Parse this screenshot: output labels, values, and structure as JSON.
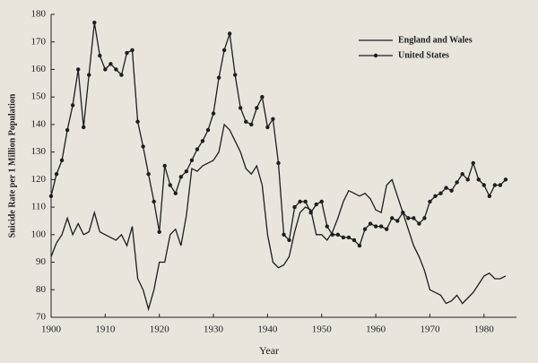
{
  "chart_data": {
    "type": "line",
    "x_label": "Year",
    "y_label": "Suicide Rate per 1 Million Population",
    "x": [
      1900,
      1901,
      1902,
      1903,
      1904,
      1905,
      1906,
      1907,
      1908,
      1909,
      1910,
      1911,
      1912,
      1913,
      1914,
      1915,
      1916,
      1917,
      1918,
      1919,
      1920,
      1921,
      1922,
      1923,
      1924,
      1925,
      1926,
      1927,
      1928,
      1929,
      1930,
      1931,
      1932,
      1933,
      1934,
      1935,
      1936,
      1937,
      1938,
      1939,
      1940,
      1941,
      1942,
      1943,
      1944,
      1945,
      1946,
      1947,
      1948,
      1949,
      1950,
      1951,
      1952,
      1953,
      1954,
      1955,
      1956,
      1957,
      1958,
      1959,
      1960,
      1961,
      1962,
      1963,
      1964,
      1965,
      1966,
      1967,
      1968,
      1969,
      1970,
      1971,
      1972,
      1973,
      1974,
      1975,
      1976,
      1977,
      1978,
      1979,
      1980,
      1981,
      1982,
      1983,
      1984
    ],
    "series": [
      {
        "name": "England and Wales",
        "color": "#1e1e1e",
        "marker": "none",
        "values": [
          92,
          97,
          100,
          106,
          100,
          104,
          100,
          101,
          108,
          101,
          100,
          99,
          98,
          100,
          96,
          103,
          84,
          80,
          73,
          80,
          90,
          90,
          100,
          102,
          96,
          107,
          124,
          123,
          125,
          126,
          127,
          130,
          140,
          138,
          134,
          130,
          124,
          122,
          125,
          118,
          100,
          90,
          88,
          89,
          92,
          101,
          108,
          110,
          109,
          100,
          100,
          98,
          101,
          106,
          112,
          116,
          115,
          114,
          115,
          113,
          109,
          108,
          118,
          120,
          114,
          108,
          102,
          96,
          92,
          87,
          80,
          79,
          78,
          75,
          76,
          78,
          75,
          77,
          79,
          82,
          85,
          86,
          84,
          84,
          85
        ]
      },
      {
        "name": "United States",
        "color": "#1e1e1e",
        "marker": "circle",
        "values": [
          114,
          122,
          127,
          138,
          147,
          160,
          139,
          158,
          177,
          165,
          160,
          162,
          160,
          158,
          166,
          167,
          141,
          132,
          122,
          112,
          101,
          125,
          118,
          115,
          121,
          123,
          127,
          131,
          134,
          138,
          144,
          157,
          167,
          173,
          158,
          146,
          141,
          140,
          146,
          150,
          139,
          142,
          126,
          100,
          98,
          110,
          112,
          112,
          108,
          111,
          112,
          103,
          100,
          100,
          99,
          99,
          98,
          96,
          102,
          104,
          103,
          103,
          102,
          106,
          105,
          108,
          106,
          106,
          104,
          106,
          112,
          114,
          115,
          117,
          116,
          119,
          122,
          120,
          126,
          120,
          118,
          114,
          118,
          118,
          120
        ]
      }
    ],
    "xlim": [
      1900,
      1986
    ],
    "ylim": [
      70,
      180
    ],
    "xticks": [
      1900,
      1910,
      1920,
      1930,
      1940,
      1950,
      1960,
      1970,
      1980
    ],
    "yticks": [
      70,
      80,
      90,
      100,
      110,
      120,
      130,
      140,
      150,
      160,
      170,
      180
    ],
    "legend": "upper right"
  }
}
